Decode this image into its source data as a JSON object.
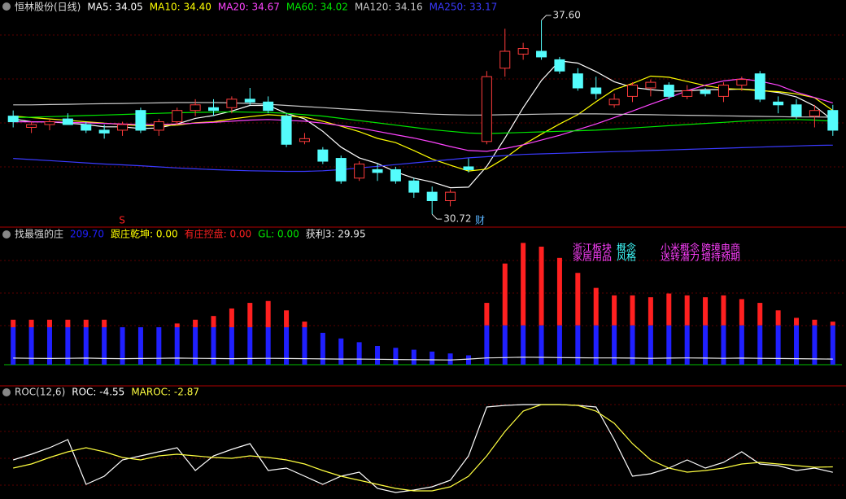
{
  "chart_data": [
    {
      "type": "candlestick",
      "title": "恒林股份(日线)",
      "title_color": "#dcdcdc",
      "up_color": "#ff3c3c",
      "down_color": "#54fcfc",
      "ylim": [
        30.29,
        38.32
      ],
      "candles": [
        [
          34.2,
          34.4,
          33.8,
          34.0
        ],
        [
          33.8,
          34.0,
          33.6,
          33.9
        ],
        [
          33.9,
          34.1,
          33.7,
          34.0
        ],
        [
          34.1,
          34.3,
          33.9,
          33.9
        ],
        [
          33.9,
          34.0,
          33.6,
          33.7
        ],
        [
          33.7,
          33.9,
          33.4,
          33.6
        ],
        [
          33.7,
          34.0,
          33.5,
          33.9
        ],
        [
          34.4,
          34.5,
          33.6,
          33.7
        ],
        [
          33.7,
          34.1,
          33.5,
          34.0
        ],
        [
          34.0,
          34.5,
          33.9,
          34.4
        ],
        [
          34.4,
          34.8,
          34.2,
          34.6
        ],
        [
          34.5,
          34.8,
          34.2,
          34.4
        ],
        [
          34.5,
          34.9,
          34.3,
          34.8
        ],
        [
          34.8,
          35.2,
          34.6,
          34.7
        ],
        [
          34.7,
          34.9,
          34.3,
          34.4
        ],
        [
          34.2,
          34.3,
          33.1,
          33.2
        ],
        [
          33.3,
          33.6,
          33.2,
          33.4
        ],
        [
          33.0,
          33.1,
          32.5,
          32.6
        ],
        [
          32.7,
          32.8,
          31.8,
          31.9
        ],
        [
          32.0,
          32.6,
          31.9,
          32.5
        ],
        [
          32.3,
          32.5,
          31.9,
          32.2
        ],
        [
          32.3,
          32.4,
          31.8,
          31.9
        ],
        [
          31.9,
          32.0,
          31.3,
          31.5
        ],
        [
          31.5,
          31.7,
          30.72,
          31.2
        ],
        [
          31.2,
          31.6,
          31.0,
          31.5
        ],
        [
          32.4,
          32.7,
          32.2,
          32.3
        ],
        [
          33.3,
          35.8,
          33.2,
          35.6
        ],
        [
          35.9,
          37.3,
          35.6,
          36.5
        ],
        [
          36.4,
          36.8,
          36.2,
          36.6
        ],
        [
          36.5,
          37.6,
          36.2,
          36.3
        ],
        [
          36.2,
          36.3,
          35.7,
          35.8
        ],
        [
          35.7,
          35.9,
          35.1,
          35.2
        ],
        [
          35.2,
          35.6,
          34.8,
          35.0
        ],
        [
          34.6,
          35.0,
          34.5,
          34.8
        ],
        [
          34.9,
          35.4,
          34.7,
          35.3
        ],
        [
          35.2,
          35.5,
          34.9,
          35.4
        ],
        [
          35.3,
          35.4,
          34.8,
          34.9
        ],
        [
          34.9,
          35.3,
          34.8,
          35.1
        ],
        [
          35.1,
          35.2,
          34.9,
          35.0
        ],
        [
          34.9,
          35.4,
          34.7,
          35.3
        ],
        [
          35.3,
          35.6,
          35.1,
          35.5
        ],
        [
          35.7,
          35.8,
          34.7,
          34.8
        ],
        [
          34.7,
          34.9,
          34.3,
          34.6
        ],
        [
          34.6,
          34.8,
          34.1,
          34.2
        ],
        [
          34.2,
          34.6,
          33.8,
          34.4
        ],
        [
          34.4,
          34.6,
          33.5,
          33.7
        ]
      ],
      "series": [
        {
          "legend": "MA5: 34.05",
          "color": "#ffffff",
          "values": [
            34.1,
            34.0,
            34.0,
            33.95,
            33.9,
            33.82,
            33.82,
            33.76,
            33.78,
            33.92,
            34.12,
            34.22,
            34.38,
            34.58,
            34.58,
            34.3,
            34.1,
            33.66,
            33.1,
            32.72,
            32.52,
            32.22,
            32.0,
            31.86,
            31.66,
            31.68,
            32.42,
            33.42,
            34.5,
            35.46,
            36.16,
            36.08,
            35.78,
            35.42,
            35.22,
            35.14,
            35.08,
            35.1,
            35.14,
            35.14,
            35.16,
            35.12,
            35.04,
            34.88,
            34.56,
            34.05
          ]
        },
        {
          "legend": "MA10: 34.40",
          "color": "#ffff00",
          "values": [
            34.2,
            34.15,
            34.1,
            34.05,
            34.0,
            33.95,
            33.9,
            33.86,
            33.86,
            33.88,
            33.96,
            34.0,
            34.1,
            34.18,
            34.25,
            34.21,
            34.16,
            34.02,
            33.84,
            33.65,
            33.41,
            33.26,
            32.98,
            32.68,
            32.46,
            32.25,
            32.32,
            32.71,
            33.18,
            33.56,
            33.92,
            34.25,
            34.71,
            35.14,
            35.36,
            35.62,
            35.58,
            35.43,
            35.28,
            35.18,
            35.15,
            35.1,
            35.07,
            34.99,
            34.85,
            34.4
          ]
        },
        {
          "legend": "MA20: 34.67",
          "color": "#ff44ff",
          "values": [
            34.0,
            34.0,
            34.0,
            33.98,
            33.96,
            33.94,
            33.92,
            33.9,
            33.9,
            33.92,
            33.95,
            33.98,
            34.02,
            34.06,
            34.08,
            34.05,
            34.02,
            33.95,
            33.86,
            33.78,
            33.66,
            33.54,
            33.42,
            33.28,
            33.12,
            32.98,
            32.95,
            33.05,
            33.18,
            33.35,
            33.52,
            33.72,
            33.92,
            34.15,
            34.38,
            34.62,
            34.85,
            35.1,
            35.3,
            35.45,
            35.52,
            35.44,
            35.3,
            35.05,
            34.86,
            34.67
          ]
        },
        {
          "legend": "MA60: 34.02",
          "color": "#00e600",
          "values": [
            34.15,
            34.16,
            34.18,
            34.2,
            34.22,
            34.24,
            34.26,
            34.28,
            34.3,
            34.32,
            34.33,
            34.34,
            34.35,
            34.34,
            34.33,
            34.3,
            34.25,
            34.2,
            34.12,
            34.04,
            33.96,
            33.88,
            33.8,
            33.72,
            33.66,
            33.6,
            33.58,
            33.6,
            33.62,
            33.64,
            33.66,
            33.68,
            33.7,
            33.74,
            33.78,
            33.82,
            33.86,
            33.9,
            33.94,
            33.98,
            34.02,
            34.05,
            34.07,
            34.08,
            34.06,
            34.02
          ]
        },
        {
          "legend": "MA120: 34.16",
          "color": "#c8c8c8",
          "values": [
            34.6,
            34.6,
            34.61,
            34.62,
            34.63,
            34.64,
            34.65,
            34.66,
            34.67,
            34.68,
            34.68,
            34.68,
            34.67,
            34.65,
            34.62,
            34.58,
            34.54,
            34.5,
            34.46,
            34.42,
            34.38,
            34.34,
            34.3,
            34.27,
            34.25,
            34.24,
            34.24,
            34.25,
            34.26,
            34.27,
            34.28,
            34.28,
            34.28,
            34.27,
            34.26,
            34.25,
            34.24,
            34.23,
            34.22,
            34.21,
            34.2,
            34.19,
            34.18,
            34.17,
            34.17,
            34.16
          ]
        },
        {
          "legend": "MA250: 33.17",
          "color": "#3a3aff",
          "values": [
            32.7,
            32.66,
            32.62,
            32.58,
            32.54,
            32.5,
            32.47,
            32.44,
            32.4,
            32.36,
            32.33,
            32.3,
            32.28,
            32.26,
            32.25,
            32.24,
            32.24,
            32.26,
            32.3,
            32.36,
            32.42,
            32.48,
            32.54,
            32.6,
            32.66,
            32.72,
            32.76,
            32.8,
            32.84,
            32.86,
            32.88,
            32.9,
            32.92,
            32.94,
            32.96,
            32.98,
            33.0,
            33.02,
            33.04,
            33.06,
            33.08,
            33.1,
            33.12,
            33.14,
            33.16,
            33.17
          ]
        }
      ],
      "annotations": [
        {
          "value": 37.6,
          "label": "37.60",
          "at": "high"
        },
        {
          "value": 30.72,
          "label": "30.72",
          "at": "low"
        }
      ],
      "markers": [
        {
          "text": "S",
          "color": "#ff2020"
        },
        {
          "text": "财",
          "color": "#5ab4ff"
        }
      ]
    },
    {
      "type": "bar",
      "title": "找最强的庄",
      "title_color": "#dcdcdc",
      "ylim": [
        0,
        717
      ],
      "series": [
        {
          "legend": "209.70",
          "color": "#2020ff",
          "values": [
            200,
            200,
            200,
            200,
            200,
            200,
            200,
            200,
            200,
            200,
            200,
            200,
            200,
            200,
            200,
            200,
            200,
            170,
            140,
            120,
            100,
            90,
            80,
            70,
            60,
            50,
            210,
            210,
            210,
            210,
            210,
            210,
            210,
            210,
            210,
            210,
            210,
            210,
            210,
            210,
            210,
            210,
            210,
            210,
            210,
            209.7
          ]
        },
        {
          "color": "#ff2020",
          "values": [
            40,
            40,
            40,
            40,
            40,
            40,
            0,
            0,
            0,
            20,
            40,
            60,
            100,
            130,
            140,
            90,
            30,
            0,
            0,
            0,
            0,
            0,
            0,
            0,
            0,
            0,
            120,
            330,
            440,
            420,
            360,
            280,
            200,
            160,
            160,
            150,
            170,
            160,
            150,
            160,
            140,
            120,
            80,
            40,
            30,
            20
          ]
        },
        {
          "legend": "获利3: 29.95",
          "color": "#e8e8e8",
          "type": "line",
          "values": [
            35,
            34,
            33,
            34,
            35,
            33,
            32,
            33,
            34,
            35,
            34,
            33,
            32,
            33,
            34,
            33,
            32,
            31,
            30,
            30,
            29,
            28,
            27,
            26,
            25,
            30,
            36,
            38,
            40,
            39,
            38,
            37,
            36,
            36,
            35,
            34,
            35,
            36,
            35,
            34,
            35,
            34,
            33,
            32,
            31,
            29.95
          ]
        }
      ],
      "notes": [
        {
          "text": "跟庄乾坤: 0.00",
          "color": "#ffff00"
        },
        {
          "text": "有庄控盘: 0.00",
          "color": "#ff2020"
        },
        {
          "text": "GL: 0.00",
          "color": "#00e600"
        }
      ],
      "tags": [
        {
          "text": "浙江板块",
          "color": "#ff40ff"
        },
        {
          "text": "家居用品",
          "color": "#ff40ff"
        },
        {
          "text": "概念",
          "color": "#40ffff"
        },
        {
          "text": "风格",
          "color": "#40ffff"
        },
        {
          "text": "小米概念",
          "color": "#ff40ff"
        },
        {
          "text": "送转潜力",
          "color": "#ff40ff"
        },
        {
          "text": "跨境电商",
          "color": "#ff40ff"
        },
        {
          "text": "增持预期",
          "color": "#ff40ff"
        }
      ]
    },
    {
      "type": "line",
      "title": "ROC(12,6)",
      "title_color": "#dcdcdc",
      "ylim": [
        -12.75,
        21.75
      ],
      "series": [
        {
          "legend": "ROC: -4.55",
          "color": "#ffffff",
          "values": [
            -0.75,
            1,
            3,
            5.5,
            -8.25,
            -5.75,
            -0.75,
            0.5,
            1.75,
            3,
            -4,
            0.5,
            2.5,
            4.25,
            -4,
            -3.25,
            -5.75,
            -8.25,
            -5.75,
            -4.5,
            -9.5,
            -10.75,
            -10,
            -9,
            -7,
            0.5,
            15.5,
            16,
            16.25,
            16.25,
            16.25,
            16,
            15.5,
            5.5,
            -5.75,
            -5,
            -3.25,
            -0.75,
            -3.25,
            -1.5,
            1.75,
            -2,
            -2.5,
            -4,
            -3.25,
            -4.55
          ]
        },
        {
          "legend": "MAROC: -2.87",
          "color": "#ffff40",
          "values": [
            -3.25,
            -2,
            0,
            1.75,
            3,
            1.75,
            0,
            -0.75,
            0.5,
            1,
            0.5,
            0,
            -0.25,
            0.5,
            0,
            -0.75,
            -2,
            -4,
            -5.75,
            -7,
            -8.25,
            -9.5,
            -10.25,
            -10.25,
            -9,
            -5.75,
            0.5,
            8,
            14.25,
            16.25,
            16.25,
            16,
            14.25,
            10.5,
            4.25,
            -0.75,
            -3.25,
            -4.5,
            -4,
            -3.25,
            -2,
            -1.5,
            -2,
            -2.5,
            -3,
            -2.87
          ]
        }
      ]
    }
  ]
}
